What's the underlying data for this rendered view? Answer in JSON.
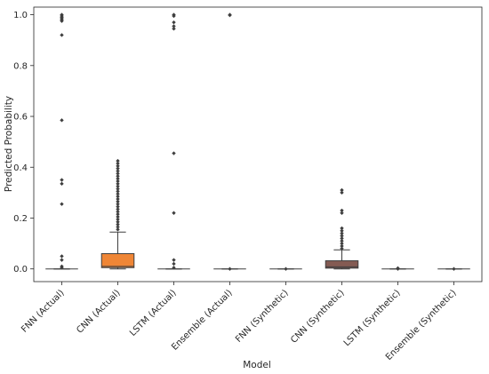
{
  "chart_data": {
    "type": "box",
    "xlabel": "Model",
    "ylabel": "Predicted Probability",
    "ylim": [
      -0.05,
      1.03
    ],
    "yticks": [
      "0.0",
      "0.2",
      "0.4",
      "0.6",
      "0.8",
      "1.0"
    ],
    "grid": false,
    "categories": [
      "FNN (Actual)",
      "CNN (Actual)",
      "LSTM (Actual)",
      "Ensemble (Actual)",
      "FNN (Synthetic)",
      "CNN (Synthetic)",
      "LSTM (Synthetic)",
      "Ensemble (Synthetic)"
    ],
    "boxes": [
      {
        "label": "FNN (Actual)",
        "color": "#3b75af",
        "whisker_low": 0.0,
        "q1": 0.0,
        "median": 0.0,
        "q3": 0.0,
        "whisker_high": 0.0,
        "outliers": [
          1.0,
          0.995,
          0.99,
          0.985,
          0.98,
          0.975,
          0.92,
          0.585,
          0.35,
          0.335,
          0.255,
          0.05,
          0.035,
          0.01,
          0.005
        ]
      },
      {
        "label": "CNN (Actual)",
        "color": "#ef8636",
        "whisker_low": 0.0,
        "q1": 0.005,
        "median": 0.01,
        "q3": 0.06,
        "whisker_high": 0.145,
        "outliers": [
          0.155,
          0.165,
          0.175,
          0.185,
          0.195,
          0.205,
          0.215,
          0.225,
          0.235,
          0.245,
          0.255,
          0.265,
          0.275,
          0.285,
          0.295,
          0.305,
          0.315,
          0.325,
          0.335,
          0.345,
          0.355,
          0.365,
          0.375,
          0.385,
          0.395,
          0.405,
          0.415,
          0.425
        ]
      },
      {
        "label": "LSTM (Actual)",
        "color": "#529e3e",
        "whisker_low": 0.0,
        "q1": 0.0,
        "median": 0.0,
        "q3": 0.0,
        "whisker_high": 0.0,
        "outliers": [
          1.0,
          0.995,
          0.97,
          0.955,
          0.945,
          0.455,
          0.22,
          0.035,
          0.02,
          0.005
        ]
      },
      {
        "label": "Ensemble (Actual)",
        "color": "#c53a32",
        "whisker_low": 0.0,
        "q1": 0.0,
        "median": 0.0,
        "q3": 0.0,
        "whisker_high": 0.0,
        "outliers": [
          1.0,
          0.998,
          0.0
        ]
      },
      {
        "label": "FNN (Synthetic)",
        "color": "#8d69b8",
        "whisker_low": 0.0,
        "q1": 0.0,
        "median": 0.0,
        "q3": 0.0,
        "whisker_high": 0.0,
        "outliers": [
          0.0
        ]
      },
      {
        "label": "CNN (Synthetic)",
        "color": "#845b53",
        "whisker_low": 0.0,
        "q1": 0.003,
        "median": 0.008,
        "q3": 0.032,
        "whisker_high": 0.075,
        "outliers": [
          0.08,
          0.09,
          0.1,
          0.11,
          0.12,
          0.13,
          0.14,
          0.15,
          0.16,
          0.22,
          0.23,
          0.3,
          0.31
        ]
      },
      {
        "label": "LSTM (Synthetic)",
        "color": "#d57dbe",
        "whisker_low": 0.0,
        "q1": 0.0,
        "median": 0.0,
        "q3": 0.0,
        "whisker_high": 0.0,
        "outliers": [
          0.0,
          0.003
        ]
      },
      {
        "label": "Ensemble (Synthetic)",
        "color": "#7f7f7f",
        "whisker_low": 0.0,
        "q1": 0.0,
        "median": 0.0,
        "q3": 0.0,
        "whisker_high": 0.0,
        "outliers": [
          0.0
        ]
      }
    ]
  }
}
